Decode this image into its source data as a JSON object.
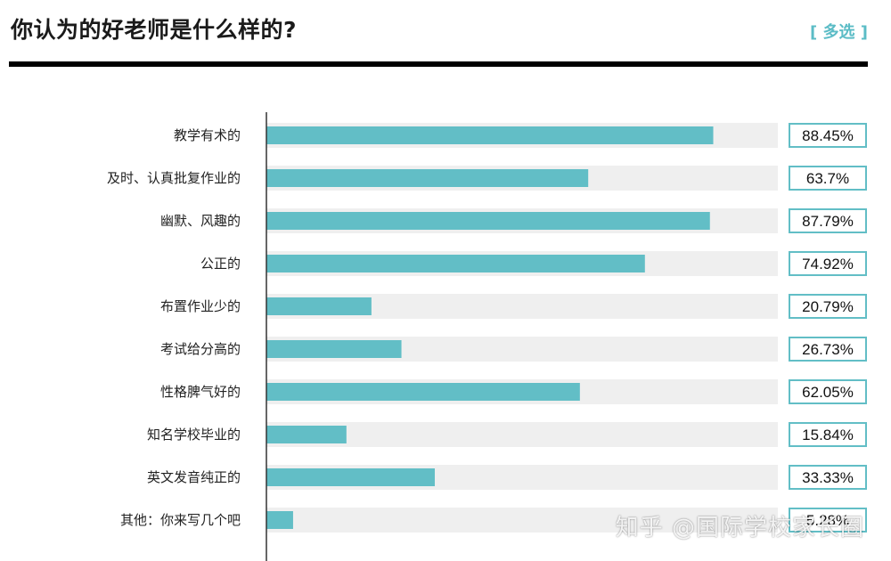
{
  "header": {
    "title": "你认为的好老师是什么样的?",
    "tag": "[ 多选 ]"
  },
  "watermark": "知乎 @国际学校家长圈",
  "chart_data": {
    "type": "bar",
    "orientation": "horizontal",
    "categories": [
      "教学有术的",
      "及时、认真批复作业的",
      "幽默、风趣的",
      "公正的",
      "布置作业少的",
      "考试给分高的",
      "性格脾气好的",
      "知名学校毕业的",
      "英文发音纯正的",
      "其他：你来写几个吧"
    ],
    "values": [
      88.45,
      63.7,
      87.79,
      74.92,
      20.79,
      26.73,
      62.05,
      15.84,
      33.33,
      5.28
    ],
    "value_labels": [
      "88.45%",
      "63.7%",
      "87.79%",
      "74.92%",
      "20.79%",
      "26.73%",
      "62.05%",
      "15.84%",
      "33.33%",
      "5.28%"
    ],
    "xlim": [
      0,
      100
    ],
    "bar_color": "#62bec6",
    "track_color": "#efefef",
    "label_border_color": "#62bec6",
    "grid": false
  }
}
